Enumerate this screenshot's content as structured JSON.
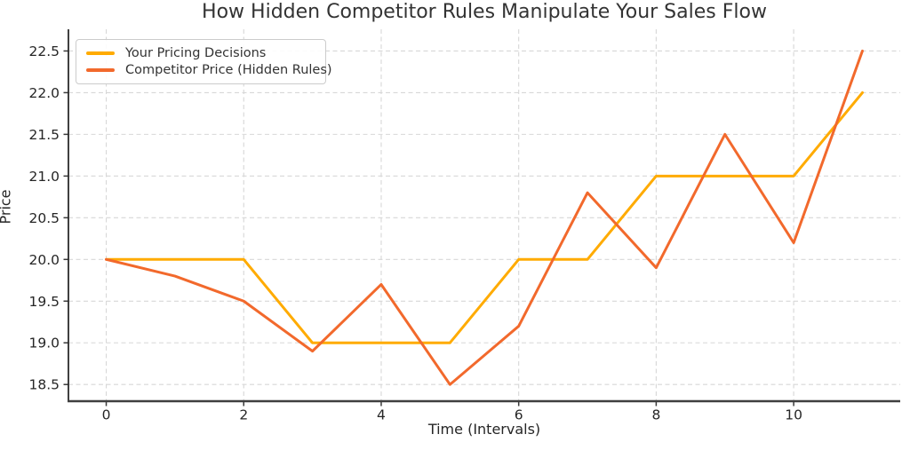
{
  "chart_data": {
    "type": "line",
    "title": "How Hidden Competitor Rules Manipulate Your Sales Flow",
    "xlabel": "Time (Intervals)",
    "ylabel": "Price",
    "x": [
      0,
      1,
      2,
      3,
      4,
      5,
      6,
      7,
      8,
      9,
      10,
      11
    ],
    "series": [
      {
        "name": "Your Pricing Decisions",
        "color": "#FFAB00",
        "values": [
          20.0,
          20.0,
          20.0,
          19.0,
          19.0,
          19.0,
          20.0,
          20.0,
          21.0,
          21.0,
          21.0,
          22.0
        ]
      },
      {
        "name": "Competitor Price (Hidden Rules)",
        "color": "#F2692C",
        "values": [
          20.0,
          19.8,
          19.5,
          18.9,
          19.7,
          18.5,
          19.2,
          20.8,
          19.9,
          21.5,
          20.2,
          22.5
        ]
      }
    ],
    "xticks": {
      "values": [
        0,
        2,
        4,
        6,
        8,
        10
      ],
      "labels": [
        "0",
        "2",
        "4",
        "6",
        "8",
        "10"
      ]
    },
    "yticks": {
      "values": [
        18.5,
        19.0,
        19.5,
        20.0,
        20.5,
        21.0,
        21.5,
        22.0,
        22.5
      ],
      "labels": [
        "18.5",
        "19.0",
        "19.5",
        "20.0",
        "20.5",
        "21.0",
        "21.5",
        "22.0",
        "22.5"
      ]
    },
    "xlim": [
      -0.55,
      11.55
    ],
    "ylim": [
      18.3,
      22.76
    ],
    "grid": true,
    "legend_position": "upper-left",
    "grid_color": "#d7d7d7",
    "axis_color": "#3a3a3a",
    "text_color": "#262626"
  }
}
